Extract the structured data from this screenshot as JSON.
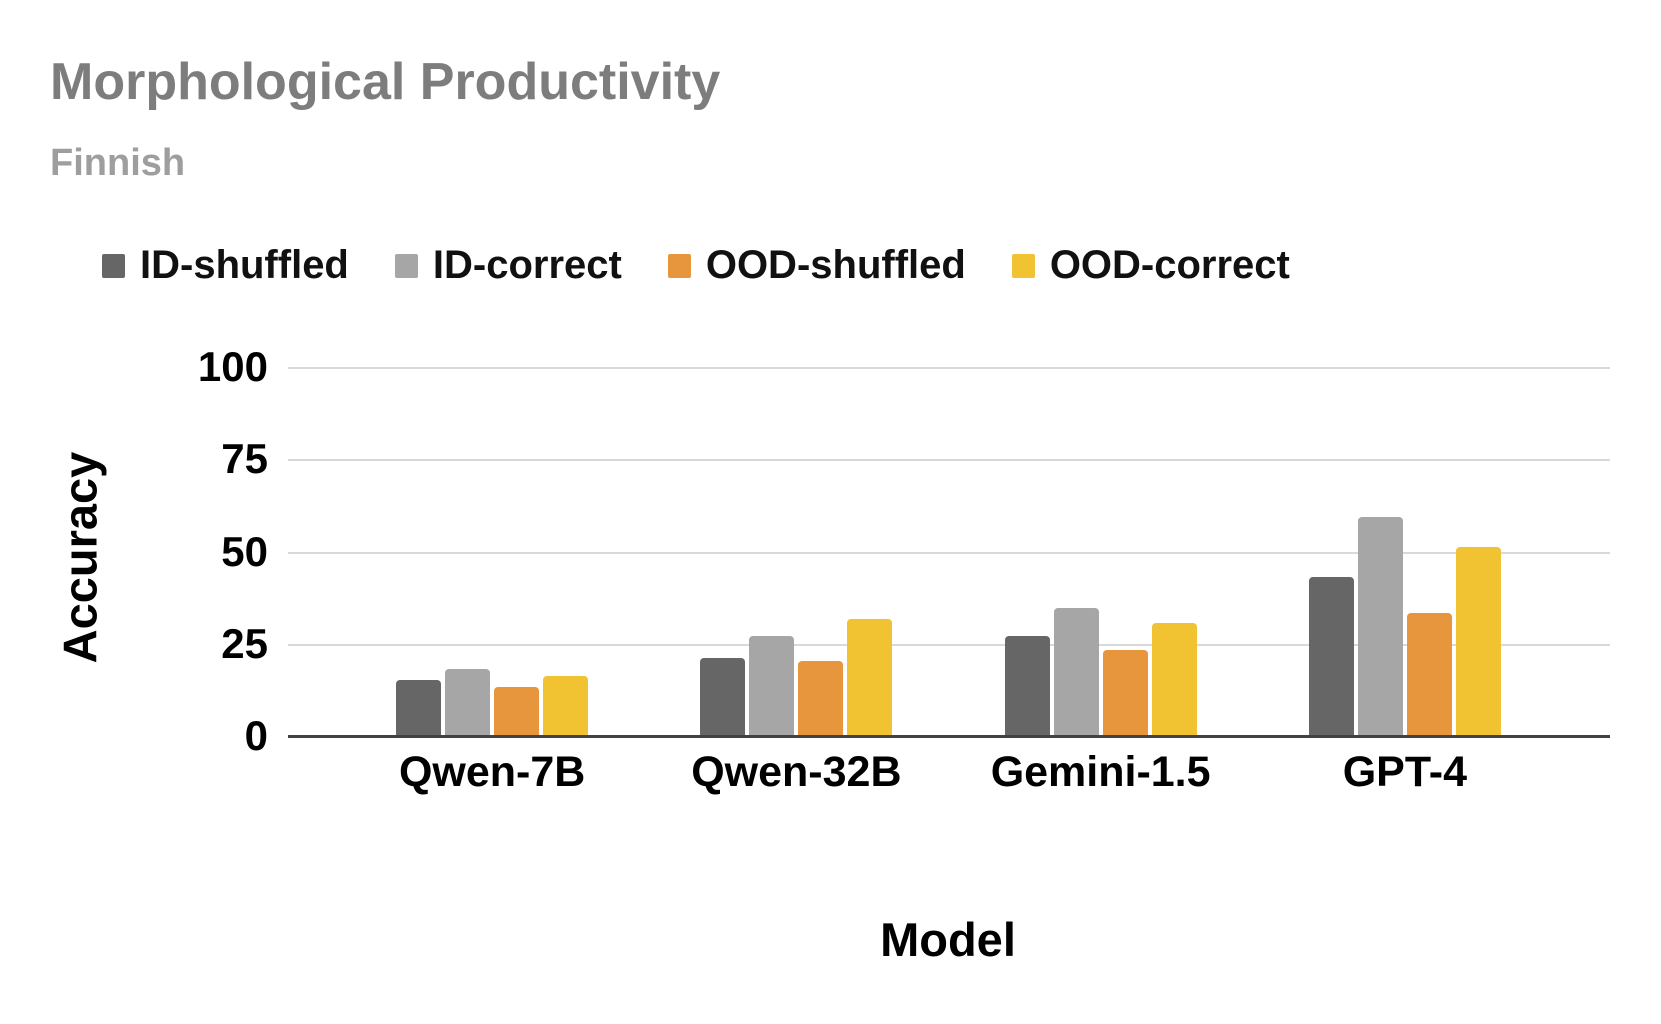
{
  "chart_data": {
    "type": "bar",
    "title": "Morphological Productivity",
    "subtitle": "Finnish",
    "xlabel": "Model",
    "ylabel": "Accuracy",
    "categories": [
      "Qwen-7B",
      "Qwen-32B",
      "Gemini-1.5",
      "GPT-4"
    ],
    "series": [
      {
        "name": "ID-shuffled",
        "color": "#666666",
        "values": [
          15.5,
          21.5,
          27.5,
          43.5
        ]
      },
      {
        "name": "ID-correct",
        "color": "#a6a6a6",
        "values": [
          18.5,
          27.5,
          35.0,
          59.5
        ]
      },
      {
        "name": "OOD-shuffled",
        "color": "#e8963d",
        "values": [
          13.5,
          20.5,
          23.5,
          33.5
        ]
      },
      {
        "name": "OOD-correct",
        "color": "#f1c232",
        "values": [
          16.5,
          32.0,
          31.0,
          51.5
        ]
      }
    ],
    "ylim": [
      0,
      100
    ],
    "yticks": [
      0,
      25,
      50,
      75,
      100
    ],
    "grid": true,
    "legend_position": "top",
    "colors": {
      "title": "#7d7d7d",
      "subtitle": "#9e9e9e",
      "gridline": "#d9d9d9",
      "baseline": "#424242",
      "text": "#000000"
    }
  }
}
